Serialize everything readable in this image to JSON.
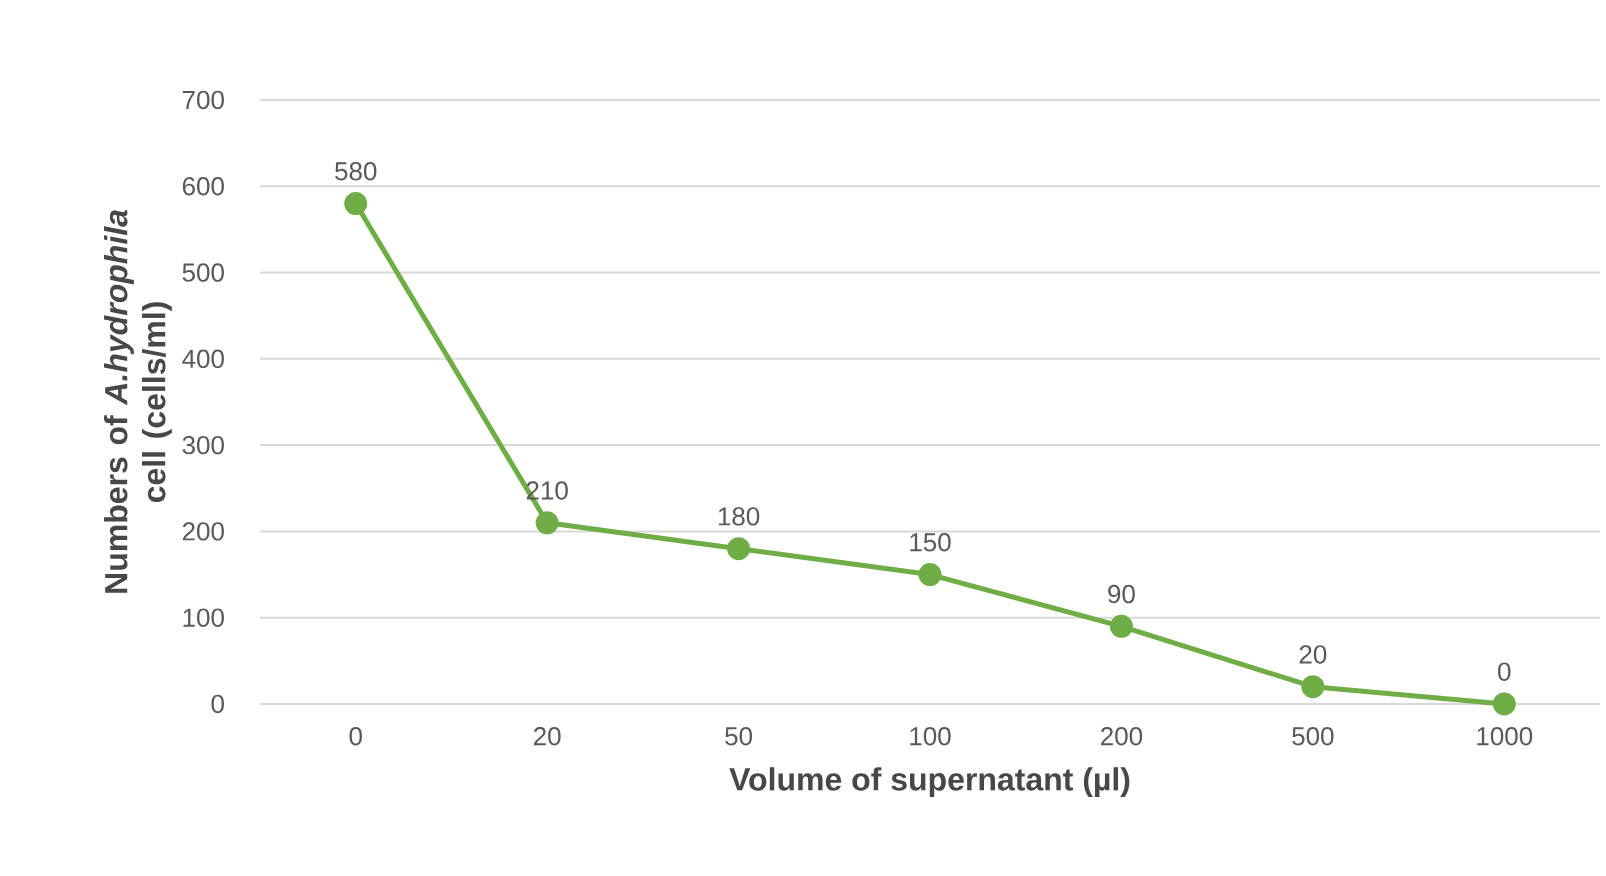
{
  "chart_data": {
    "type": "line",
    "xlabel": "Volume of supernatant (µl)",
    "ylabel": "Numbers of *A.hydrophila* cell (cells/ml)",
    "categories": [
      "0",
      "20",
      "50",
      "100",
      "200",
      "500",
      "1000"
    ],
    "values": [
      580,
      210,
      180,
      150,
      90,
      20,
      0
    ],
    "color": "#70ad47",
    "marker": "circle",
    "line_style": "solid",
    "data_labels": true,
    "grid": "y",
    "ylim": [
      0,
      700
    ],
    "yticks": [
      0,
      100,
      200,
      300,
      400,
      500,
      600,
      700
    ]
  }
}
